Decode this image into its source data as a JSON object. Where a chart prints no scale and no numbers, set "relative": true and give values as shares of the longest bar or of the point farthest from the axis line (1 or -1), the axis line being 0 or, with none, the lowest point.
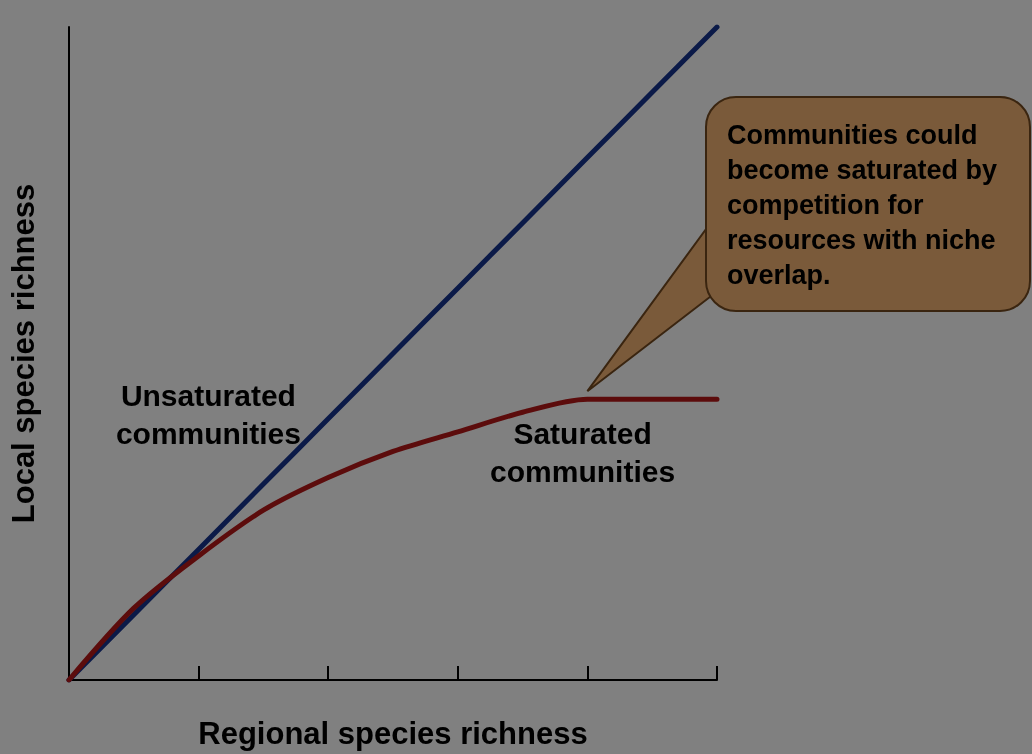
{
  "chart_data": {
    "type": "line",
    "relative": true,
    "xlabel": "Regional species richness",
    "ylabel": "Local species richness",
    "categories": [
      null,
      null,
      null,
      null,
      null,
      null,
      null,
      null,
      null,
      null,
      null
    ],
    "series": [
      {
        "name": "Unsaturated communities",
        "color": "#0b1a48",
        "values": [
          0,
          0.1,
          0.2,
          0.3,
          0.4,
          0.5,
          0.6,
          0.7,
          0.8,
          0.9,
          1
        ]
      },
      {
        "name": "Saturated communities",
        "color": "#5c0c0c",
        "values": [
          0,
          0.11,
          0.19,
          0.26,
          0.31,
          0.35,
          0.38,
          0.41,
          0.43,
          0.43,
          0.43
        ]
      }
    ],
    "annotations": [
      "Communities could become saturated by competition for resources with niche overlap."
    ],
    "marker": "none",
    "line_style": "solid",
    "grid": false,
    "legend": false
  }
}
